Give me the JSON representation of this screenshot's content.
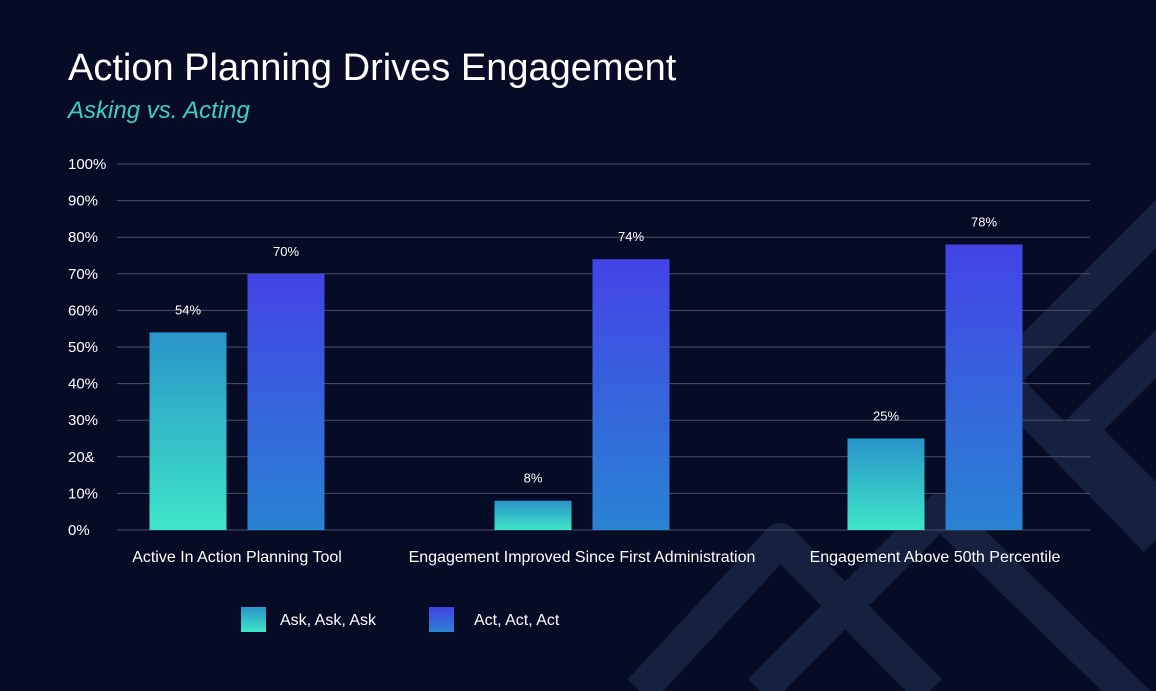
{
  "chart_data": {
    "type": "bar",
    "title": "Action Planning Drives Engagement",
    "subtitle": "Asking vs. Acting",
    "categories": [
      "Active In Action Planning Tool",
      "Engagement Improved Since First Administration",
      "Engagement Above 50th Percentile"
    ],
    "series": [
      {
        "name": "Ask, Ask, Ask",
        "values": [
          54,
          8,
          25
        ],
        "labels": [
          "54%",
          "8%",
          "25%"
        ]
      },
      {
        "name": "Act, Act, Act",
        "values": [
          70,
          74,
          78
        ],
        "labels": [
          "70%",
          "74%",
          "78%"
        ]
      }
    ],
    "yticks": [
      "0%",
      "10%",
      "20&",
      "30%",
      "40%",
      "50%",
      "60%",
      "70%",
      "80%",
      "90%",
      "100%"
    ],
    "ylim": [
      0,
      100
    ],
    "xlabel": "",
    "ylabel": "",
    "grid": true,
    "legend_position": "bottom"
  },
  "colors": {
    "background": "#070c26",
    "grid": "#4a5069",
    "ask_top": "#2994c9",
    "ask_bottom": "#3fe6c9",
    "act_top": "#4343e6",
    "act_bottom": "#2983d3",
    "subtitle": "#3ecfc0",
    "decoration": "#16203f"
  }
}
